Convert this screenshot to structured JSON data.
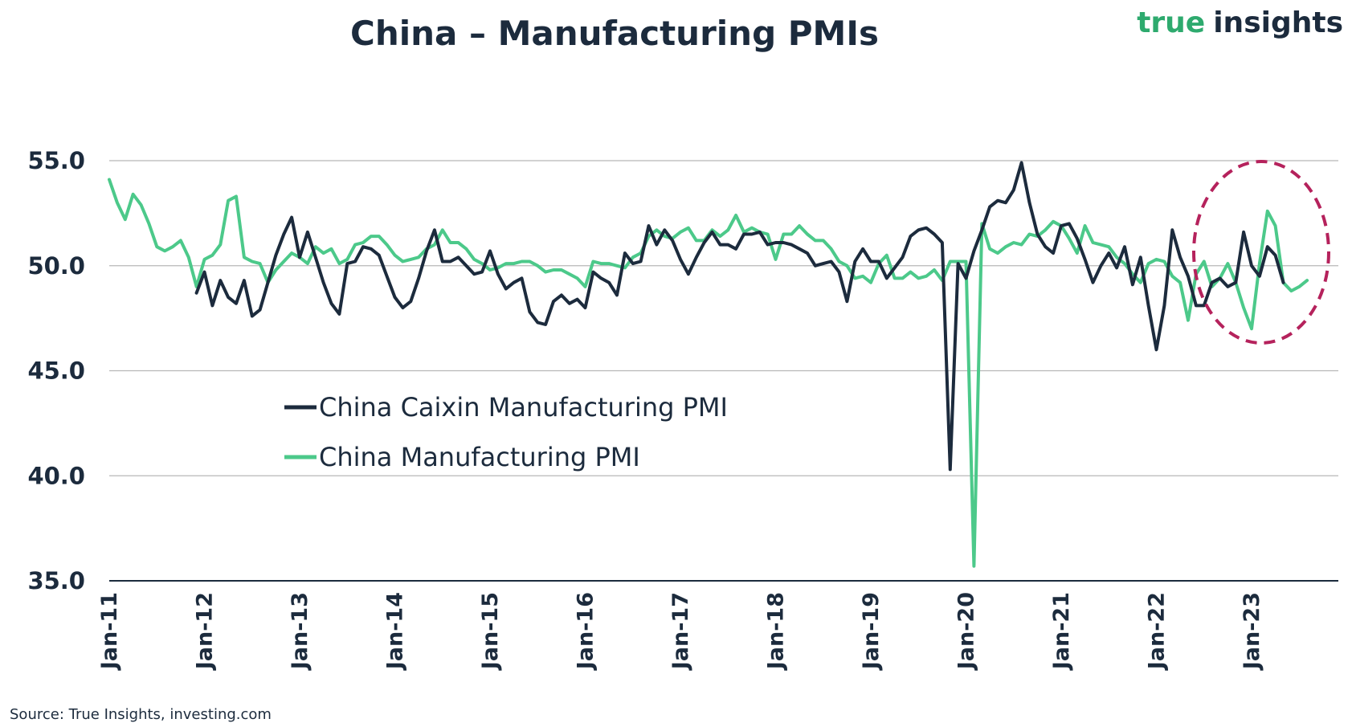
{
  "title": "China – Manufacturing PMIs",
  "brand": {
    "part1": "true",
    "part2": "insights"
  },
  "source": "Source: True Insights, investing.com",
  "colors": {
    "caixin": "#1c2b3d",
    "official": "#4cc98a",
    "highlight": "#b5225c",
    "grid": "#b8b8b8"
  },
  "chart_data": {
    "type": "line",
    "title": "China – Manufacturing PMIs",
    "xlabel": "",
    "ylabel": "",
    "ylim": [
      35,
      55
    ],
    "yticks": [
      "55.0",
      "50.0",
      "45.0",
      "40.0",
      "35.0"
    ],
    "ytick_values": [
      55,
      50,
      45,
      40,
      35
    ],
    "xticks": [
      "Jan-11",
      "Jan-12",
      "Jan-13",
      "Jan-14",
      "Jan-15",
      "Jan-16",
      "Jan-17",
      "Jan-18",
      "Jan-19",
      "Jan-20",
      "Jan-21",
      "Jan-22",
      "Jan-23"
    ],
    "x_start": "Jan-11",
    "x_unit": "months since Jan-11",
    "legend_position": "center-left",
    "annotation": "dashed ellipse highlighting 2022–2023 readings",
    "series": [
      {
        "name": "China Caixin Manufacturing PMI",
        "start_index": 11,
        "values": [
          48.7,
          49.7,
          48.1,
          49.3,
          48.5,
          48.2,
          49.3,
          47.6,
          47.9,
          49.2,
          50.5,
          51.5,
          52.3,
          50.4,
          51.6,
          50.4,
          49.2,
          48.2,
          47.7,
          50.1,
          50.2,
          50.9,
          50.8,
          50.5,
          49.5,
          48.5,
          48.0,
          48.3,
          49.4,
          50.7,
          51.7,
          50.2,
          50.2,
          50.4,
          50.0,
          49.6,
          49.7,
          50.7,
          49.6,
          48.9,
          49.2,
          49.4,
          47.8,
          47.3,
          47.2,
          48.3,
          48.6,
          48.2,
          48.4,
          48.0,
          49.7,
          49.4,
          49.2,
          48.6,
          50.6,
          50.1,
          50.2,
          51.9,
          51.0,
          51.7,
          51.2,
          50.3,
          49.6,
          50.4,
          51.1,
          51.6,
          51.0,
          51.0,
          50.8,
          51.5,
          51.5,
          51.6,
          51.0,
          51.1,
          51.1,
          51.0,
          50.8,
          50.6,
          50.0,
          50.1,
          50.2,
          49.7,
          48.3,
          50.2,
          50.8,
          50.2,
          50.2,
          49.4,
          49.9,
          50.4,
          51.4,
          51.7,
          51.8,
          51.5,
          51.1,
          40.3,
          50.1,
          49.4,
          50.7,
          51.7,
          52.8,
          53.1,
          53.0,
          53.6,
          54.9,
          53.0,
          51.5,
          50.9,
          50.6,
          51.9,
          52.0,
          51.3,
          50.3,
          49.2,
          50.0,
          50.6,
          49.9,
          50.9,
          49.1,
          50.4,
          48.1,
          46.0,
          48.1,
          51.7,
          50.4,
          49.5,
          48.1,
          48.1,
          49.2,
          49.4,
          49.0,
          49.2,
          51.6,
          50.0,
          49.5,
          50.9,
          50.5,
          49.2
        ]
      },
      {
        "name": "China Manufacturing PMI",
        "start_index": 0,
        "values": [
          54.1,
          53.0,
          52.2,
          53.4,
          52.9,
          52.0,
          50.9,
          50.7,
          50.9,
          51.2,
          50.4,
          49.0,
          50.3,
          50.5,
          51.0,
          53.1,
          53.3,
          50.4,
          50.2,
          50.1,
          49.2,
          49.8,
          50.2,
          50.6,
          50.4,
          50.1,
          50.9,
          50.6,
          50.8,
          50.1,
          50.3,
          51.0,
          51.1,
          51.4,
          51.4,
          51.0,
          50.5,
          50.2,
          50.3,
          50.4,
          50.8,
          51.0,
          51.7,
          51.1,
          51.1,
          50.8,
          50.3,
          50.1,
          49.8,
          49.9,
          50.1,
          50.1,
          50.2,
          50.2,
          50.0,
          49.7,
          49.8,
          49.8,
          49.6,
          49.4,
          49.0,
          50.2,
          50.1,
          50.1,
          50.0,
          49.9,
          50.4,
          50.6,
          51.4,
          51.7,
          51.4,
          51.3,
          51.6,
          51.8,
          51.2,
          51.2,
          51.7,
          51.4,
          51.7,
          52.4,
          51.6,
          51.8,
          51.6,
          51.5,
          50.3,
          51.5,
          51.5,
          51.9,
          51.5,
          51.2,
          51.2,
          50.8,
          50.2,
          50.0,
          49.4,
          49.5,
          49.2,
          50.1,
          50.5,
          49.4,
          49.4,
          49.7,
          49.4,
          49.5,
          49.8,
          49.3,
          50.2,
          50.2,
          50.2,
          35.7,
          52.0,
          50.8,
          50.6,
          50.9,
          51.1,
          51.0,
          51.5,
          51.4,
          51.7,
          52.1,
          51.9,
          51.3,
          50.6,
          51.9,
          51.1,
          51.0,
          50.9,
          50.4,
          50.1,
          49.6,
          49.2,
          50.1,
          50.3,
          50.2,
          49.5,
          49.2,
          47.4,
          49.6,
          50.2,
          49.0,
          49.4,
          50.1,
          49.2,
          48.0,
          47.0,
          50.1,
          52.6,
          51.9,
          49.2,
          48.8,
          49.0,
          49.3
        ]
      }
    ]
  }
}
